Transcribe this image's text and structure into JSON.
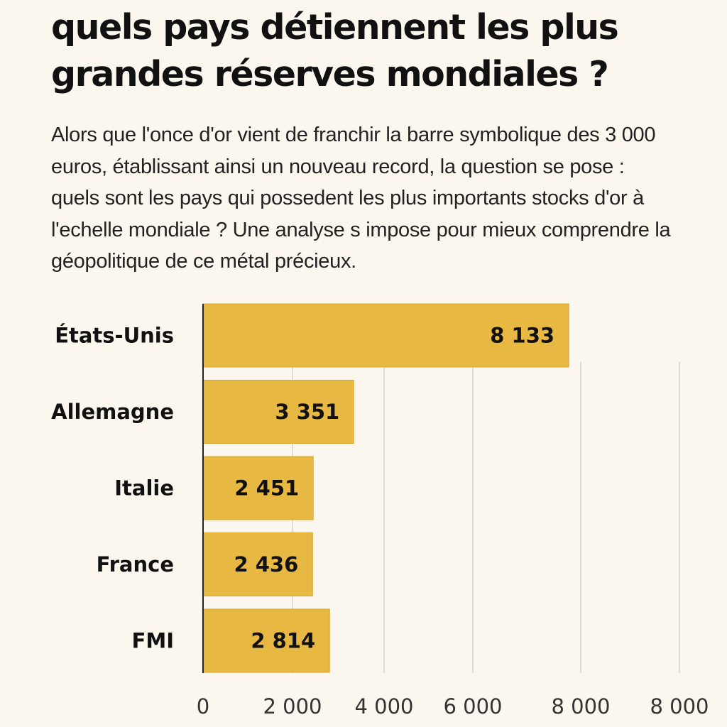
{
  "title": "quels pays détiennent les plus grandes réserves mondiales ?",
  "subtitle": "Alors que l'once d'or vient de franchir la barre symbolique des 3 000 euros, établissant ainsi un nouveau record, la question se pose : quels sont les pays qui possedent les plus importants stocks d'or à l'echelle mondiale ? Une analyse s impose pour mieux comprendre la géopolitique de ce métal précieux.",
  "colors": {
    "bar": "#e8b942",
    "bar_edge": "#d9a52e",
    "background": "#fcf7ee",
    "grid": "#d6d2c9",
    "axis": "#222222"
  },
  "chart_data": {
    "type": "bar",
    "orientation": "horizontal",
    "categories": [
      "États-Unis",
      "Allemagne",
      "Italie",
      "France",
      "FMI"
    ],
    "values": [
      8133,
      3351,
      2451,
      2436,
      2814
    ],
    "value_labels": [
      "8 133",
      "3 351",
      "2 451",
      "2 436",
      "2 814"
    ],
    "tick_labels": [
      "0",
      "2 000",
      "4 000",
      "6 000",
      "8 000",
      "8 000"
    ],
    "title": "",
    "xlabel": "",
    "ylabel": "",
    "grid": true
  }
}
